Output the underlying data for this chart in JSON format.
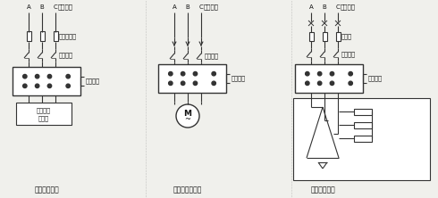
{
  "bg_color": "#f0f0ec",
  "line_color": "#333333",
  "text_color": "#111111",
  "panel_labels": [
    "普通使用方法",
    "控制三相电动机",
    "控制阻性负载"
  ],
  "p1_abc": [
    "A",
    "B",
    "C"
  ],
  "p2_abc": [
    "A",
    "B",
    "C"
  ],
  "p3_abc": [
    "A",
    "B",
    "C"
  ],
  "load_label_line1": "阻性或感",
  "load_label_line2": "性负载",
  "fuse_label": "快速熔断器",
  "iso_label": "隔离开关",
  "ctrl_label": "控制电源",
  "source_label": "负载电源",
  "breaker_label": "断路器",
  "motor_label_M": "M",
  "motor_label_wave": "~"
}
